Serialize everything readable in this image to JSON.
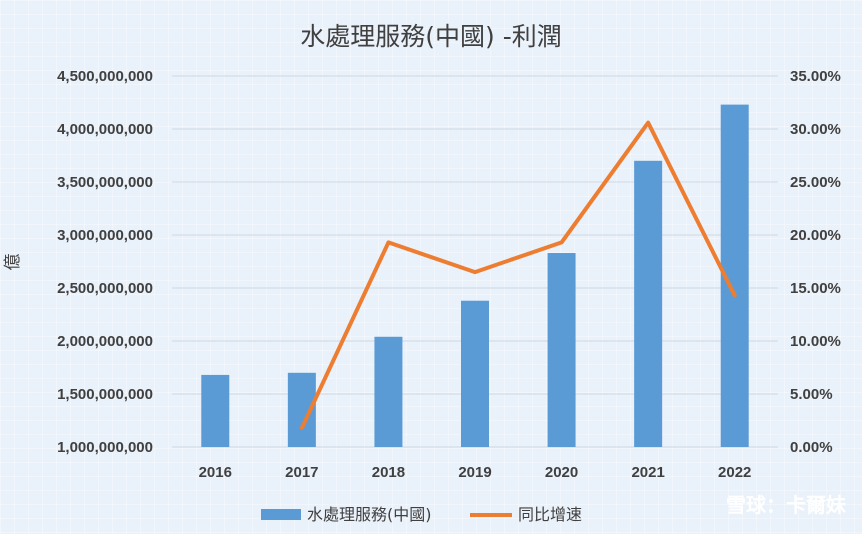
{
  "chart_data": {
    "type": "bar",
    "title": "水處理服務(中國) -利潤",
    "ylabel": "億",
    "categories": [
      "2016",
      "2017",
      "2018",
      "2019",
      "2020",
      "2021",
      "2022"
    ],
    "series": [
      {
        "name": "水處理服務(中國)",
        "type": "bar",
        "axis": "left",
        "color": "#5b9bd5",
        "values": [
          1680000000,
          1700000000,
          2040000000,
          2380000000,
          2830000000,
          3700000000,
          4230000000
        ]
      },
      {
        "name": "同比增速",
        "type": "line",
        "axis": "right",
        "color": "#ed7d31",
        "values": [
          null,
          1.8,
          19.3,
          16.5,
          19.3,
          30.6,
          14.3
        ]
      }
    ],
    "ylim": [
      1000000000,
      4500000000
    ],
    "y2lim": [
      0,
      35
    ],
    "yticks": [
      "1,000,000,000",
      "1,500,000,000",
      "2,000,000,000",
      "2,500,000,000",
      "3,000,000,000",
      "3,500,000,000",
      "4,000,000,000",
      "4,500,000,000"
    ],
    "y2ticks": [
      "0.00%",
      "5.00%",
      "10.00%",
      "15.00%",
      "20.00%",
      "25.00%",
      "30.00%",
      "35.00%"
    ],
    "grid": true,
    "legend_position": "bottom"
  },
  "watermark": "雪球：卡爾妹",
  "colors": {
    "grid": "#d0d7e2",
    "axis_text": "#404040"
  }
}
